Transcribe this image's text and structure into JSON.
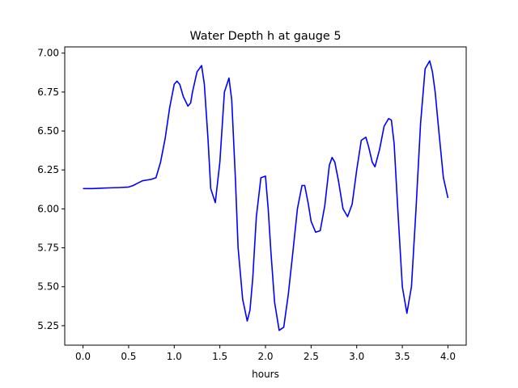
{
  "chart_data": {
    "type": "line",
    "title": "Water Depth h at gauge 5",
    "xlabel": "hours",
    "ylabel": "",
    "xlim": [
      -0.2,
      4.2
    ],
    "ylim": [
      5.125,
      7.04
    ],
    "xticks": [
      0.0,
      0.5,
      1.0,
      1.5,
      2.0,
      2.5,
      3.0,
      3.5,
      4.0
    ],
    "xtick_labels": [
      "0.0",
      "0.5",
      "1.0",
      "1.5",
      "2.0",
      "2.5",
      "3.0",
      "3.5",
      "4.0"
    ],
    "yticks": [
      5.25,
      5.5,
      5.75,
      6.0,
      6.25,
      6.5,
      6.75,
      7.0
    ],
    "ytick_labels": [
      "5.25",
      "5.50",
      "5.75",
      "6.00",
      "6.25",
      "6.50",
      "6.75",
      "7.00"
    ],
    "grid": false,
    "series": [
      {
        "color": "#0000ff",
        "x": [
          0.0,
          0.1,
          0.2,
          0.3,
          0.4,
          0.5,
          0.55,
          0.6,
          0.65,
          0.7,
          0.75,
          0.8,
          0.85,
          0.9,
          0.95,
          1.0,
          1.03,
          1.06,
          1.1,
          1.15,
          1.18,
          1.2,
          1.25,
          1.3,
          1.33,
          1.37,
          1.4,
          1.45,
          1.5,
          1.55,
          1.6,
          1.63,
          1.67,
          1.7,
          1.75,
          1.8,
          1.83,
          1.86,
          1.9,
          1.95,
          2.0,
          2.03,
          2.06,
          2.1,
          2.15,
          2.2,
          2.25,
          2.3,
          2.35,
          2.4,
          2.43,
          2.47,
          2.5,
          2.55,
          2.6,
          2.65,
          2.7,
          2.73,
          2.76,
          2.8,
          2.85,
          2.9,
          2.95,
          3.0,
          3.05,
          3.1,
          3.13,
          3.17,
          3.2,
          3.25,
          3.3,
          3.35,
          3.38,
          3.41,
          3.45,
          3.5,
          3.55,
          3.6,
          3.65,
          3.7,
          3.75,
          3.8,
          3.83,
          3.86,
          3.9,
          3.95,
          4.0
        ],
        "y": [
          6.13,
          6.13,
          6.133,
          6.135,
          6.137,
          6.14,
          6.15,
          6.165,
          6.18,
          6.185,
          6.19,
          6.2,
          6.3,
          6.45,
          6.65,
          6.8,
          6.82,
          6.8,
          6.72,
          6.66,
          6.68,
          6.75,
          6.88,
          6.92,
          6.8,
          6.45,
          6.13,
          6.04,
          6.3,
          6.75,
          6.84,
          6.7,
          6.2,
          5.75,
          5.42,
          5.28,
          5.35,
          5.55,
          5.95,
          6.2,
          6.21,
          6.0,
          5.72,
          5.4,
          5.22,
          5.24,
          5.45,
          5.72,
          6.0,
          6.15,
          6.15,
          6.03,
          5.92,
          5.85,
          5.86,
          6.02,
          6.28,
          6.33,
          6.3,
          6.18,
          6.0,
          5.95,
          6.03,
          6.25,
          6.44,
          6.46,
          6.4,
          6.3,
          6.27,
          6.38,
          6.53,
          6.58,
          6.57,
          6.42,
          6.0,
          5.5,
          5.33,
          5.5,
          6.0,
          6.55,
          6.9,
          6.95,
          6.88,
          6.75,
          6.5,
          6.2,
          6.07
        ]
      }
    ]
  }
}
